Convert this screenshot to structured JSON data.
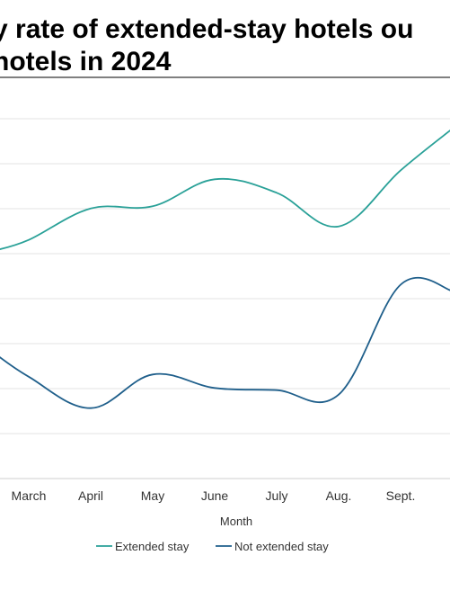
{
  "chart_data": {
    "type": "line",
    "title_lines": [
      "y rate of extended-stay hotels ou",
      " hotels in 2024"
    ],
    "xlabel": "Month",
    "ylabel": "",
    "categories": [
      "March",
      "April",
      "May",
      "June",
      "July",
      "Aug.",
      "Sept."
    ],
    "grid": true,
    "legend_position": "bottom",
    "series": [
      {
        "name": "Extended stay",
        "color": "#2aa198",
        "values": [
          74.6,
          76.0,
          76.1,
          77.3,
          76.7,
          75.2,
          77.7
        ]
      },
      {
        "name": "Not extended stay",
        "color": "#1f5f8b",
        "values": [
          68.5,
          67.1,
          68.6,
          68.0,
          67.9,
          67.7,
          72.6
        ]
      }
    ]
  }
}
